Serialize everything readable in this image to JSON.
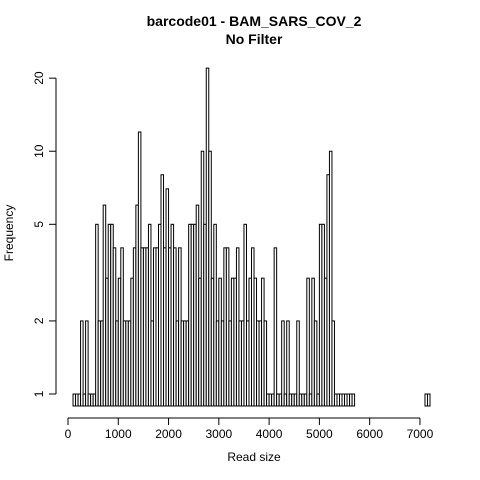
{
  "chart_data": {
    "type": "bar",
    "title": "barcode01 - BAM_SARS_COV_2",
    "subtitle": "No Filter",
    "xlabel": "Read size",
    "ylabel": "Frequency",
    "y_scale": "log",
    "xlim": [
      0,
      7200
    ],
    "ylim": [
      1,
      21
    ],
    "bin_width": 50,
    "x_ticks": [
      0,
      1000,
      2000,
      3000,
      4000,
      5000,
      6000,
      7000
    ],
    "y_ticks": [
      1,
      2,
      5,
      10,
      20
    ],
    "grid": false,
    "legend": "none",
    "color": "#000000",
    "series": [
      {
        "bin_starts": [
          100,
          150,
          200,
          250,
          300,
          350,
          400,
          450,
          500,
          550,
          600,
          650,
          700,
          750,
          800,
          850,
          900,
          950,
          1000,
          1050,
          1100,
          1150,
          1200,
          1250,
          1300,
          1350,
          1400,
          1450,
          1500,
          1550,
          1600,
          1650,
          1700,
          1750,
          1800,
          1850,
          1900,
          1950,
          2000,
          2050,
          2100,
          2150,
          2200,
          2250,
          2300,
          2350,
          2400,
          2450,
          2500,
          2550,
          2600,
          2650,
          2700,
          2750,
          2800,
          2850,
          2900,
          2950,
          3000,
          3050,
          3100,
          3150,
          3200,
          3250,
          3300,
          3350,
          3400,
          3450,
          3500,
          3550,
          3600,
          3650,
          3700,
          3750,
          3800,
          3850,
          3900,
          3950,
          4000,
          4050,
          4100,
          4150,
          4200,
          4250,
          4300,
          4350,
          4400,
          4450,
          4500,
          4550,
          4600,
          4650,
          4700,
          4750,
          4800,
          4850,
          4900,
          4950,
          5000,
          5050,
          5100,
          5150,
          5200,
          5250,
          5300,
          5350,
          5400,
          5450,
          5500,
          5550,
          5600,
          5650,
          7100,
          7150
        ],
        "counts": [
          1,
          1,
          1,
          2,
          1,
          2,
          1,
          1,
          1,
          5,
          2,
          2,
          6,
          3,
          5,
          5,
          4,
          2,
          3,
          4,
          2,
          2,
          2,
          3,
          4,
          6,
          12,
          4,
          4,
          4,
          5,
          2,
          4,
          4,
          5,
          8,
          4,
          7,
          4,
          5,
          4,
          2,
          4,
          2,
          2,
          2,
          5,
          5,
          5,
          6,
          3,
          10,
          5,
          22,
          10,
          3,
          5,
          2,
          3,
          2,
          4,
          4,
          2,
          3,
          3,
          4,
          2,
          2,
          5,
          2,
          3,
          4,
          3,
          2,
          2,
          3,
          2,
          1,
          1,
          1,
          4,
          1,
          1,
          2,
          1,
          2,
          1,
          1,
          1,
          2,
          1,
          1,
          1,
          3,
          1,
          3,
          2,
          1,
          5,
          5,
          3,
          8,
          10,
          2,
          1,
          1,
          1,
          1,
          1,
          1,
          1,
          1,
          1,
          1
        ]
      }
    ]
  }
}
